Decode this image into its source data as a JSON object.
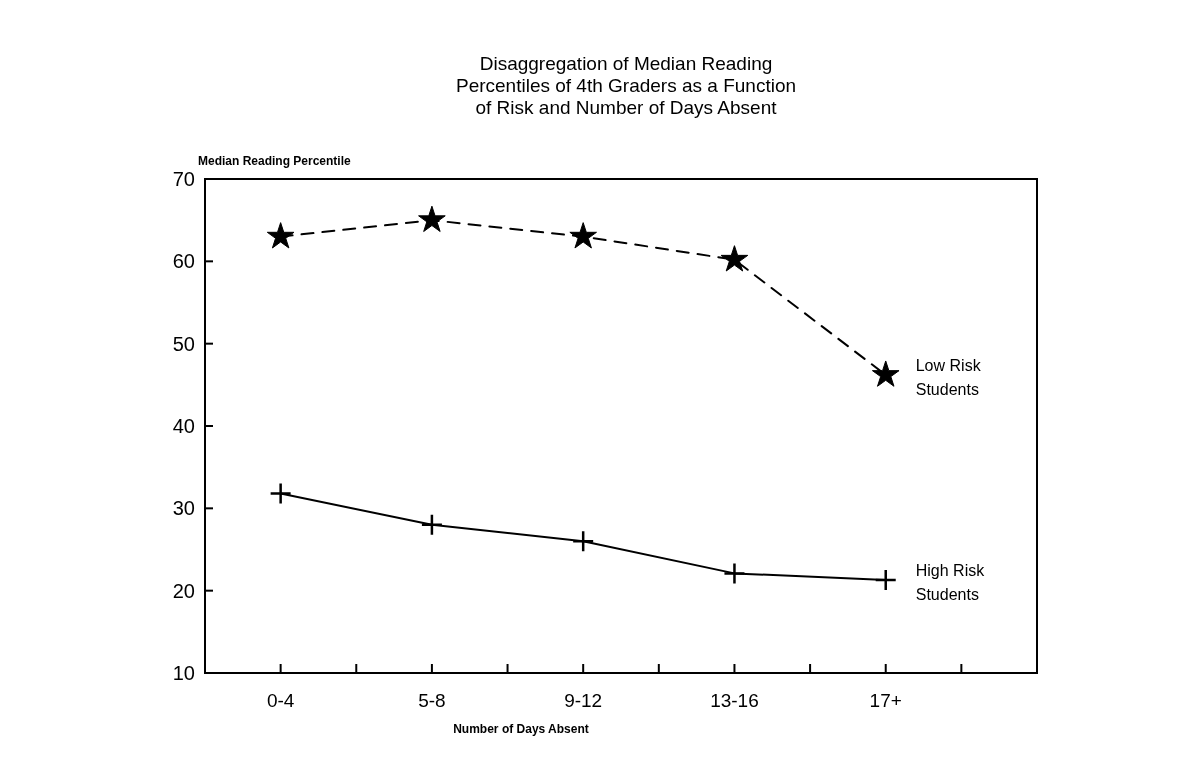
{
  "chart_data": {
    "type": "line",
    "title": "Disaggregation of Median Reading\nPercentiles of 4th Graders as a Function\nof Risk and Number of Days Absent",
    "ylabel": "Median Reading Percentile",
    "xlabel": "Number of Days Absent",
    "categories": [
      "0-4",
      "5-8",
      "9-12",
      "13-16",
      "17+"
    ],
    "ylim": [
      10,
      70
    ],
    "yticks": [
      10,
      20,
      30,
      40,
      50,
      60,
      70
    ],
    "grid": false,
    "series": [
      {
        "name": "Low Risk\nStudents",
        "color": "#000000",
        "values": [
          63,
          65,
          63,
          60.2,
          46.2
        ],
        "marker": "star",
        "line_style": "dashed"
      },
      {
        "name": "High Risk\nStudents",
        "color": "#000000",
        "values": [
          31.8,
          28,
          26,
          22.1,
          21.3
        ],
        "marker": "cross",
        "line_style": "solid"
      }
    ]
  }
}
